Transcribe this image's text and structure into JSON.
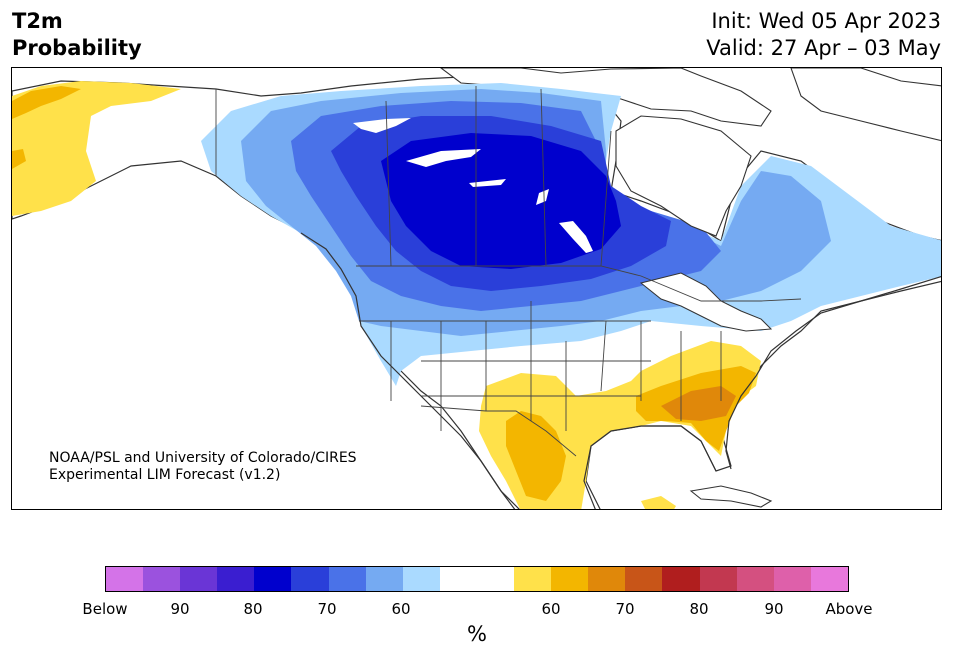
{
  "title": {
    "left_line1": "T2m",
    "left_line2": "Probability",
    "right_line1": "Init: Wed 05 Apr 2023",
    "right_line2": "Valid: 27 Apr – 03 May"
  },
  "credit": {
    "line1": "NOAA/PSL and University of Colorado/CIRES",
    "line2": "Experimental LIM Forecast (v1.2)"
  },
  "map": {
    "region": "North America",
    "features": [
      "land-coastlines",
      "country-borders",
      "state-province-borders",
      "probability-shading"
    ]
  },
  "colorbar": {
    "colors": [
      "#d473e8",
      "#9b52de",
      "#6a35d6",
      "#3a1ed0",
      "#0000cd",
      "#2a3fd9",
      "#4a72e8",
      "#75aaf2",
      "#aadaff",
      "#ffffff",
      "#ffffff",
      "#ffe14a",
      "#f3b600",
      "#e0880a",
      "#c85518",
      "#b01e1e",
      "#c23850",
      "#d45080",
      "#de60aa",
      "#e878dc"
    ],
    "labels": [
      "Below",
      "90",
      "80",
      "70",
      "60",
      "60",
      "70",
      "80",
      "90",
      "Above"
    ],
    "unit": "%"
  }
}
